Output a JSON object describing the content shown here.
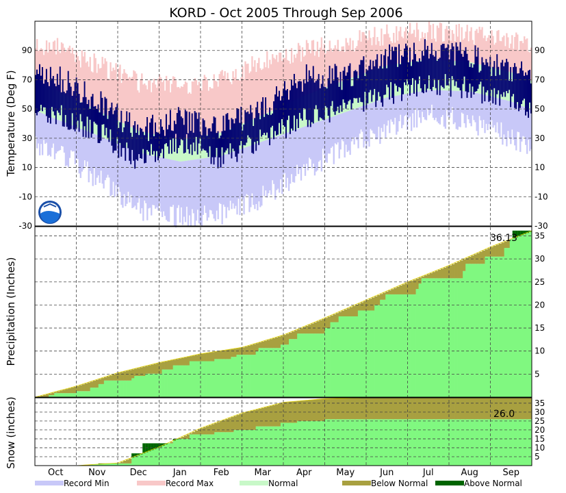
{
  "chart_data": {
    "title": "KORD - Oct 2005 Through Sep 2006",
    "months": [
      "Oct",
      "Nov",
      "Dec",
      "Jan",
      "Feb",
      "Mar",
      "Apr",
      "May",
      "Jun",
      "Jul",
      "Aug",
      "Sep"
    ],
    "colors": {
      "record_min": "#c8c8f8",
      "record_max": "#f8c8c8",
      "normal": "#c8f8c8",
      "observed_temp": "#000070",
      "below_normal": "#a8a040",
      "above_normal": "#006400",
      "precip_observed": "#80f880"
    },
    "legend": [
      {
        "label": "Record Min",
        "color": "#c8c8f8"
      },
      {
        "label": "Record Max",
        "color": "#f8c8c8"
      },
      {
        "label": "Normal",
        "color": "#c8f8c8"
      },
      {
        "label": "Below Normal",
        "color": "#a8a040"
      },
      {
        "label": "Above Normal",
        "color": "#006400"
      }
    ],
    "panels": [
      {
        "type": "area",
        "ylabel": "Temperature (Deg F)",
        "ylim": [
          -30,
          110
        ],
        "ticks": [
          -30,
          -10,
          10,
          30,
          50,
          70,
          90
        ],
        "monthly": {
          "record_max_high": [
            92,
            80,
            68,
            66,
            70,
            83,
            90,
            95,
            101,
            103,
            101,
            98
          ],
          "normal_high": [
            63,
            49,
            35,
            29,
            34,
            46,
            59,
            70,
            80,
            84,
            82,
            75
          ],
          "normal_low": [
            43,
            32,
            20,
            14,
            18,
            28,
            38,
            48,
            58,
            63,
            62,
            55
          ],
          "record_min_low": [
            22,
            2,
            -18,
            -24,
            -22,
            -10,
            8,
            25,
            36,
            46,
            42,
            30
          ],
          "observed_high": [
            72,
            55,
            35,
            43,
            38,
            50,
            72,
            72,
            85,
            90,
            86,
            76
          ],
          "observed_low": [
            46,
            35,
            14,
            28,
            16,
            30,
            44,
            50,
            60,
            68,
            64,
            55
          ]
        }
      },
      {
        "type": "area",
        "ylabel": "Precipitation (Inches)",
        "ylim": [
          0,
          37
        ],
        "ticks": [
          5,
          10,
          15,
          20,
          25,
          30,
          35
        ],
        "annotation": "36.13",
        "month_end_normal": [
          2.4,
          5.3,
          7.5,
          9.4,
          10.8,
          13.5,
          17.2,
          21.1,
          25.0,
          28.6,
          32.6,
          36.1
        ],
        "month_end_observed": [
          1.3,
          3.6,
          5.1,
          7.8,
          9.2,
          11.4,
          15.0,
          18.8,
          22.3,
          25.8,
          30.5,
          36.13
        ]
      },
      {
        "type": "area",
        "ylabel": "Snow (inches)",
        "ylim": [
          0,
          38
        ],
        "ticks": [
          5,
          10,
          15,
          20,
          25,
          30,
          35
        ],
        "annotation": "26.0",
        "month_end_normal": [
          0.0,
          1.5,
          10.5,
          21.0,
          29.5,
          35.5,
          37.5,
          38.0,
          38.0,
          38.0,
          38.0,
          38.0
        ],
        "month_end_observed": [
          0.0,
          1.2,
          12.5,
          17.5,
          20.0,
          24.0,
          26.0,
          26.0,
          26.0,
          26.0,
          26.0,
          26.0
        ]
      }
    ]
  }
}
